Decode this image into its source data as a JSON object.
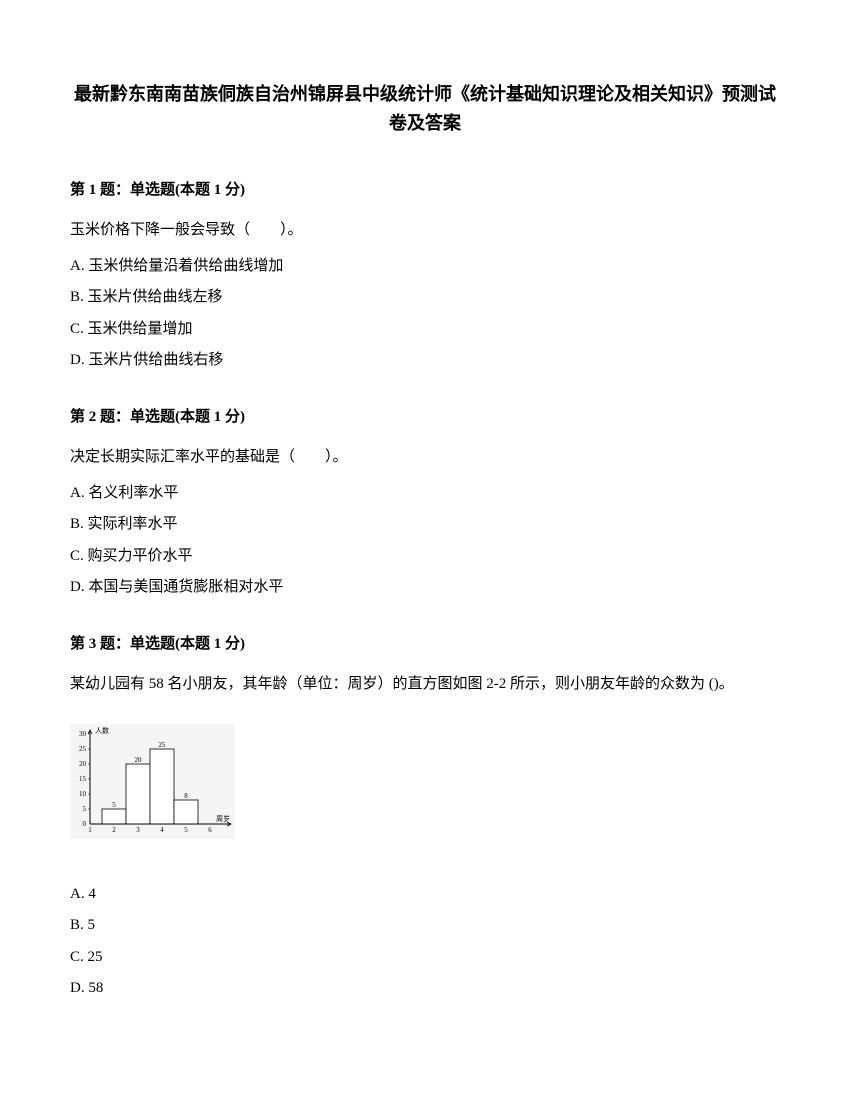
{
  "title_line1": "最新黔东南南苗族侗族自治州锦屏县中级统计师《统计基础知识理论及相关知识》预测试",
  "title_line2": "卷及答案",
  "q1": {
    "header": "第 1 题：单选题(本题 1 分)",
    "text": "玉米价格下降一般会导致（　　）。",
    "optA": "A. 玉米供给量沿着供给曲线增加",
    "optB": "B. 玉米片供给曲线左移",
    "optC": "C. 玉米供给量增加",
    "optD": "D. 玉米片供给曲线右移"
  },
  "q2": {
    "header": "第 2 题：单选题(本题 1 分)",
    "text": "决定长期实际汇率水平的基础是（　　）。",
    "optA": "A. 名义利率水平",
    "optB": "B. 实际利率水平",
    "optC": "C. 购买力平价水平",
    "optD": "D. 本国与美国通货膨胀相对水平"
  },
  "q3": {
    "header": "第 3 题：单选题(本题 1 分)",
    "text": "某幼儿园有 58 名小朋友，其年龄（单位：周岁）的直方图如图 2-2 所示，则小朋友年龄的众数为 ()。",
    "optA": "A. 4",
    "optB": "B. 5",
    "optC": "C. 25",
    "optD": "D. 58"
  },
  "chart": {
    "y_label": "人数",
    "x_label": "周岁",
    "y_ticks": [
      0,
      5,
      10,
      15,
      20,
      25,
      30
    ],
    "x_ticks": [
      1,
      2,
      3,
      4,
      5,
      6
    ],
    "bars": [
      {
        "x": 2,
        "value": 5,
        "label": "5"
      },
      {
        "x": 3,
        "value": 20,
        "label": "20"
      },
      {
        "x": 4,
        "value": 25,
        "label": "25"
      },
      {
        "x": 5,
        "value": 8,
        "label": "8"
      }
    ],
    "y_max": 30,
    "bar_fill": "#ffffff",
    "bar_stroke": "#000000",
    "axis_color": "#000000",
    "grid_color": "#cccccc",
    "background": "#f5f5f3",
    "font_size": 7
  }
}
